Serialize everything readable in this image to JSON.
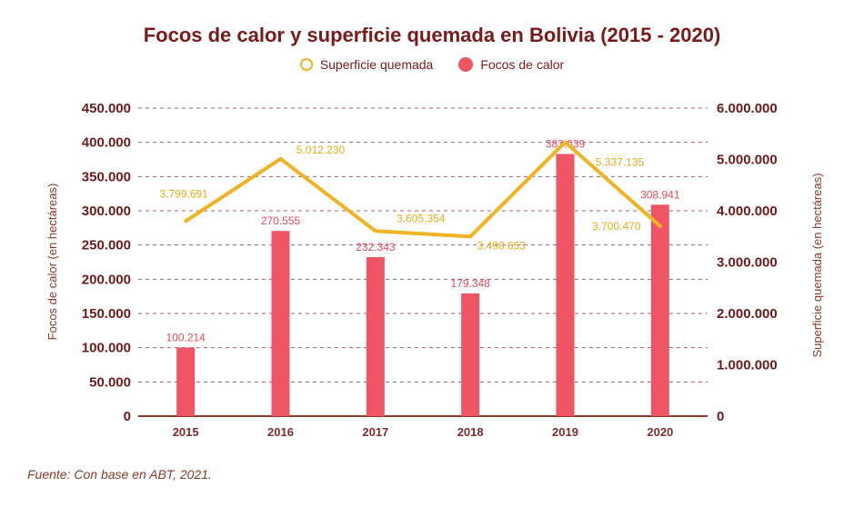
{
  "chart_data": {
    "type": "bar",
    "title": "Focos de calor y superficie quemada en Bolivia (2015 - 2020)",
    "categories": [
      "2015",
      "2016",
      "2017",
      "2018",
      "2019",
      "2020"
    ],
    "series": [
      {
        "name": "Focos de calor",
        "type": "bar",
        "axis": "left",
        "color": "#ef5565",
        "values": [
          100214,
          270555,
          232343,
          179348,
          383039,
          308941
        ],
        "labels": [
          "100.214",
          "270.555",
          "232.343",
          "179.348",
          "383.039",
          "308.941"
        ]
      },
      {
        "name": "Superficie quemada",
        "type": "line",
        "axis": "right",
        "color": "#f0b323",
        "values": [
          3799691,
          5012230,
          3605354,
          3498653,
          5337135,
          3700470
        ],
        "labels": [
          "3.799.691",
          "5.012.230",
          "3.605.354",
          "3.498.653",
          "5.337.135",
          "3.700.470"
        ]
      }
    ],
    "legend": {
      "position": "top-center",
      "items": [
        {
          "label": "Superficie quemada",
          "marker": "hollow-circle",
          "color": "#f0b323"
        },
        {
          "label": "Focos de calor",
          "marker": "filled-circle",
          "color": "#ef5565"
        }
      ]
    },
    "y_left": {
      "label": "Focos de calor (en hectáreas)",
      "range": [
        0,
        450000
      ],
      "ticks": [
        0,
        50000,
        100000,
        150000,
        200000,
        250000,
        300000,
        350000,
        400000,
        450000
      ],
      "tick_labels": [
        "0",
        "50.000",
        "100.000",
        "150.000",
        "200.000",
        "250.000",
        "300.000",
        "350.000",
        "400.000",
        "450.000"
      ]
    },
    "y_right": {
      "label": "Superficie quemada (en hectáreas)",
      "range": [
        0,
        6000000
      ],
      "ticks": [
        0,
        1000000,
        2000000,
        3000000,
        4000000,
        5000000,
        6000000
      ],
      "tick_labels": [
        "0",
        "1.000.000",
        "2.000.000",
        "3.000.000",
        "4.000.000",
        "5.000.000",
        "6.000.000"
      ]
    },
    "grid": true,
    "xlabel": ""
  },
  "source": "Fuente: Con base en ABT, 2021."
}
